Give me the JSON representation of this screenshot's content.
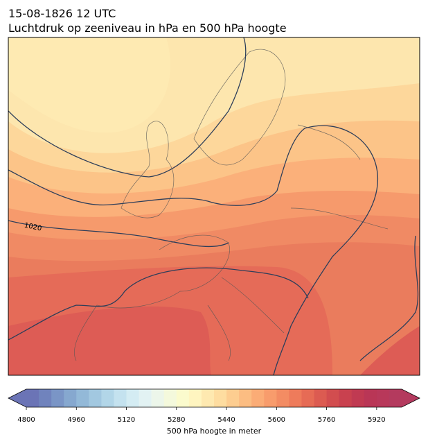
{
  "header": {
    "title": "15-08-1826 12 UTC",
    "subtitle": "Luchtdruk op zeeniveau in hPa en 500 hPa hoogte"
  },
  "map": {
    "contour_labels": [
      "1020"
    ]
  },
  "colorbar": {
    "label": "500 hPa hoogte in meter",
    "lim": [
      4800,
      6000
    ],
    "ticks": [
      4800,
      4960,
      5120,
      5280,
      5440,
      5600,
      5760,
      5920
    ],
    "colors": [
      "#6b74b6",
      "#7083bd",
      "#7a95c6",
      "#86a8cf",
      "#93b9d8",
      "#a2c8e0",
      "#b2d6e8",
      "#c4e2ef",
      "#d4ecf3",
      "#e2f2f3",
      "#ecf6ea",
      "#f4f9dc",
      "#fbfbcd",
      "#fff5c0",
      "#fee9b0",
      "#fedda0",
      "#fdcd90",
      "#fcbd82",
      "#fbac76",
      "#f89c6c",
      "#f38c63",
      "#ee7b5b",
      "#e66b55",
      "#dc5b51",
      "#d24d4f",
      "#c9414f",
      "#c03a52",
      "#b93656",
      "#b8385a",
      "#b43a5e"
    ]
  }
}
